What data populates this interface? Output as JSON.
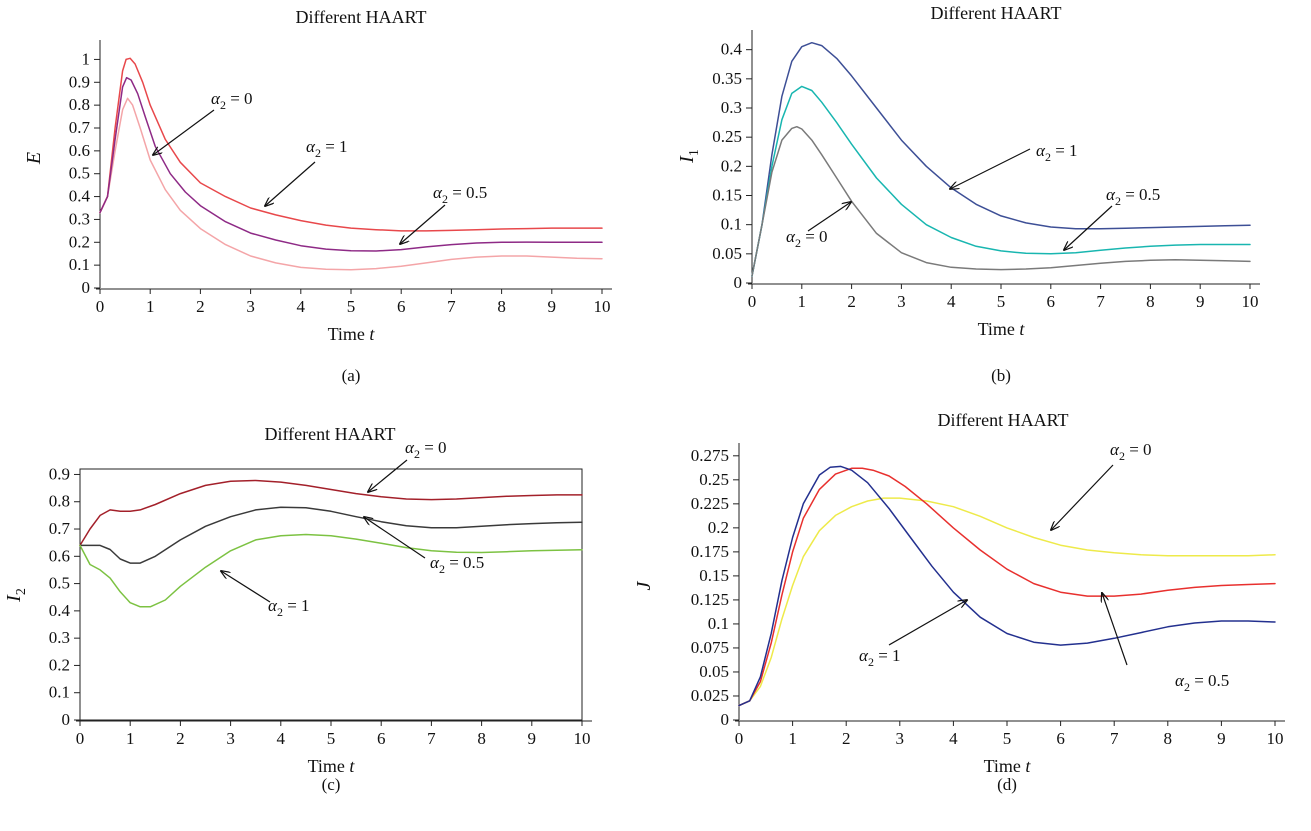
{
  "chart_data": [
    {
      "panel": "(a)",
      "type": "line",
      "title": "Different HAART",
      "xlabel": "Time",
      "xlabel_var": "t",
      "ylabel": "E",
      "xlim": [
        0,
        10
      ],
      "ylim": [
        0,
        1.05
      ],
      "xticks": [
        "0",
        "1",
        "2",
        "3",
        "4",
        "5",
        "6",
        "7",
        "8",
        "9",
        "10"
      ],
      "yticks": [
        "0",
        "0.1",
        "0.2",
        "0.3",
        "0.4",
        "0.5",
        "0.6",
        "0.7",
        "0.8",
        "0.9",
        "1"
      ],
      "framed": false,
      "series": [
        {
          "label": "α2 = 0",
          "color": "#f4a5a8",
          "x": [
            0,
            0.15,
            0.3,
            0.45,
            0.55,
            0.65,
            0.8,
            1,
            1.3,
            1.6,
            2,
            2.5,
            3,
            3.5,
            4,
            4.5,
            5,
            5.5,
            6,
            6.5,
            7,
            7.5,
            8,
            8.5,
            9,
            9.5,
            10
          ],
          "y": [
            0.33,
            0.4,
            0.6,
            0.78,
            0.83,
            0.8,
            0.7,
            0.56,
            0.43,
            0.34,
            0.26,
            0.19,
            0.14,
            0.11,
            0.09,
            0.082,
            0.08,
            0.085,
            0.095,
            0.11,
            0.125,
            0.135,
            0.14,
            0.14,
            0.135,
            0.13,
            0.128
          ]
        },
        {
          "label": "α2 = 1",
          "color": "#e8484b",
          "x": [
            0,
            0.15,
            0.3,
            0.45,
            0.52,
            0.6,
            0.7,
            0.85,
            1,
            1.3,
            1.6,
            2,
            2.5,
            3,
            3.5,
            4,
            4.5,
            5,
            5.5,
            6,
            6.5,
            7,
            7.5,
            8,
            8.5,
            9,
            9.5,
            10
          ],
          "y": [
            0.33,
            0.4,
            0.7,
            0.95,
            1.0,
            1.005,
            0.98,
            0.9,
            0.8,
            0.65,
            0.55,
            0.46,
            0.4,
            0.35,
            0.32,
            0.295,
            0.275,
            0.262,
            0.255,
            0.25,
            0.25,
            0.252,
            0.255,
            0.258,
            0.26,
            0.262,
            0.262,
            0.262
          ]
        },
        {
          "label": "α2 = 0.5",
          "color": "#8e2a86",
          "x": [
            0,
            0.15,
            0.3,
            0.45,
            0.53,
            0.62,
            0.75,
            0.9,
            1.1,
            1.4,
            1.7,
            2,
            2.5,
            3,
            3.5,
            4,
            4.5,
            5,
            5.5,
            6,
            6.5,
            7,
            7.5,
            8,
            8.5,
            9,
            9.5,
            10
          ],
          "y": [
            0.33,
            0.4,
            0.65,
            0.88,
            0.92,
            0.91,
            0.85,
            0.75,
            0.62,
            0.5,
            0.42,
            0.36,
            0.29,
            0.24,
            0.21,
            0.185,
            0.17,
            0.163,
            0.162,
            0.168,
            0.18,
            0.19,
            0.197,
            0.2,
            0.201,
            0.2,
            0.2,
            0.2
          ]
        }
      ],
      "annotations": [
        {
          "text": "α2 = 0",
          "series": 0
        },
        {
          "text": "α2 = 1",
          "series": 1
        },
        {
          "text": "α2 = 0.5",
          "series": 2
        }
      ],
      "caption": "(a)"
    },
    {
      "panel": "(b)",
      "type": "line",
      "title": "Different HAART",
      "xlabel": "Time",
      "xlabel_var": "t",
      "ylabel": "I1",
      "xlim": [
        0,
        10
      ],
      "ylim": [
        0,
        0.42
      ],
      "xticks": [
        "0",
        "1",
        "2",
        "3",
        "4",
        "5",
        "6",
        "7",
        "8",
        "9",
        "10"
      ],
      "yticks": [
        "0",
        "0.05",
        "0.1",
        "0.15",
        "0.2",
        "0.25",
        "0.3",
        "0.35",
        "0.4"
      ],
      "framed": false,
      "series": [
        {
          "label": "α2 = 1",
          "color": "#3d4f96",
          "x": [
            0,
            0.2,
            0.4,
            0.6,
            0.8,
            1,
            1.2,
            1.4,
            1.7,
            2,
            2.5,
            3,
            3.5,
            4,
            4.5,
            5,
            5.5,
            6,
            6.5,
            7,
            7.5,
            8,
            8.5,
            9,
            9.5,
            10
          ],
          "y": [
            0.012,
            0.1,
            0.22,
            0.32,
            0.38,
            0.405,
            0.412,
            0.407,
            0.385,
            0.355,
            0.3,
            0.245,
            0.2,
            0.163,
            0.135,
            0.115,
            0.103,
            0.096,
            0.093,
            0.093,
            0.094,
            0.095,
            0.096,
            0.097,
            0.098,
            0.099
          ]
        },
        {
          "label": "α2 = 0.5",
          "color": "#18b6b0",
          "x": [
            0,
            0.2,
            0.4,
            0.6,
            0.8,
            1,
            1.2,
            1.4,
            1.7,
            2,
            2.5,
            3,
            3.5,
            4,
            4.5,
            5,
            5.5,
            6,
            6.5,
            7,
            7.5,
            8,
            8.5,
            9,
            9.5,
            10
          ],
          "y": [
            0.012,
            0.1,
            0.2,
            0.28,
            0.325,
            0.337,
            0.33,
            0.31,
            0.275,
            0.238,
            0.18,
            0.135,
            0.1,
            0.078,
            0.063,
            0.055,
            0.051,
            0.05,
            0.052,
            0.056,
            0.06,
            0.063,
            0.065,
            0.066,
            0.066,
            0.066
          ]
        },
        {
          "label": "α2 = 0",
          "color": "#7a7a7a",
          "x": [
            0,
            0.2,
            0.4,
            0.6,
            0.8,
            0.9,
            1,
            1.2,
            1.4,
            1.7,
            2,
            2.5,
            3,
            3.5,
            4,
            4.5,
            5,
            5.5,
            6,
            6.5,
            7,
            7.5,
            8,
            8.5,
            9,
            9.5,
            10
          ],
          "y": [
            0.012,
            0.1,
            0.19,
            0.245,
            0.265,
            0.268,
            0.264,
            0.245,
            0.22,
            0.18,
            0.14,
            0.085,
            0.052,
            0.035,
            0.027,
            0.024,
            0.023,
            0.024,
            0.026,
            0.03,
            0.034,
            0.037,
            0.039,
            0.04,
            0.039,
            0.038,
            0.037
          ]
        }
      ],
      "annotations": [
        {
          "text": "α2 = 1",
          "series": 0
        },
        {
          "text": "α2 = 0.5",
          "series": 1
        },
        {
          "text": "α2 = 0",
          "series": 2
        }
      ],
      "caption": "(b)"
    },
    {
      "panel": "(c)",
      "type": "line",
      "title": "Different HAART",
      "xlabel": "Time",
      "xlabel_var": "t",
      "ylabel": "I2",
      "xlim": [
        0,
        10
      ],
      "ylim": [
        0,
        0.92
      ],
      "xticks": [
        "0",
        "1",
        "2",
        "3",
        "4",
        "5",
        "6",
        "7",
        "8",
        "9",
        "10"
      ],
      "yticks": [
        "0",
        "0.1",
        "0.2",
        "0.3",
        "0.4",
        "0.5",
        "0.6",
        "0.7",
        "0.8",
        "0.9"
      ],
      "framed": true,
      "series": [
        {
          "label": "α2 = 0",
          "color": "#a3202a",
          "x": [
            0,
            0.2,
            0.4,
            0.6,
            0.8,
            1,
            1.2,
            1.5,
            2,
            2.5,
            3,
            3.5,
            4,
            4.5,
            5,
            5.5,
            6,
            6.5,
            7,
            7.5,
            8,
            8.5,
            9,
            9.5,
            10
          ],
          "y": [
            0.64,
            0.7,
            0.75,
            0.77,
            0.765,
            0.765,
            0.77,
            0.79,
            0.83,
            0.86,
            0.875,
            0.878,
            0.872,
            0.86,
            0.845,
            0.83,
            0.818,
            0.81,
            0.808,
            0.81,
            0.815,
            0.82,
            0.823,
            0.825,
            0.825
          ]
        },
        {
          "label": "α2 = 0.5",
          "color": "#3a3a3a",
          "x": [
            0,
            0.2,
            0.4,
            0.6,
            0.8,
            1,
            1.2,
            1.5,
            2,
            2.5,
            3,
            3.5,
            4,
            4.5,
            5,
            5.5,
            6,
            6.5,
            7,
            7.5,
            8,
            8.5,
            9,
            9.5,
            10
          ],
          "y": [
            0.64,
            0.64,
            0.64,
            0.625,
            0.59,
            0.575,
            0.575,
            0.6,
            0.66,
            0.71,
            0.745,
            0.77,
            0.78,
            0.778,
            0.765,
            0.745,
            0.727,
            0.712,
            0.705,
            0.705,
            0.71,
            0.716,
            0.72,
            0.723,
            0.725
          ]
        },
        {
          "label": "α2 = 1",
          "color": "#7cc242",
          "x": [
            0,
            0.2,
            0.4,
            0.6,
            0.8,
            1,
            1.2,
            1.4,
            1.7,
            2,
            2.5,
            3,
            3.5,
            4,
            4.5,
            5,
            5.5,
            6,
            6.5,
            7,
            7.5,
            8,
            8.5,
            9,
            9.5,
            10
          ],
          "y": [
            0.64,
            0.57,
            0.55,
            0.52,
            0.47,
            0.43,
            0.415,
            0.415,
            0.44,
            0.49,
            0.56,
            0.62,
            0.66,
            0.675,
            0.68,
            0.675,
            0.663,
            0.648,
            0.632,
            0.62,
            0.615,
            0.614,
            0.617,
            0.62,
            0.622,
            0.624
          ]
        }
      ],
      "annotations": [
        {
          "text": "α2 = 0",
          "series": 0
        },
        {
          "text": "α2 = 0.5",
          "series": 1
        },
        {
          "text": "α2 = 1",
          "series": 2
        }
      ],
      "caption": "(c)"
    },
    {
      "panel": "(d)",
      "type": "line",
      "title": "Different HAART",
      "xlabel": "Time",
      "xlabel_var": "t",
      "ylabel": "J",
      "xlim": [
        0,
        10
      ],
      "ylim": [
        0,
        0.28
      ],
      "xticks": [
        "0",
        "1",
        "2",
        "3",
        "4",
        "5",
        "6",
        "7",
        "8",
        "9",
        "10"
      ],
      "yticks": [
        "0",
        "0.025",
        "0.05",
        "0.075",
        "0.1",
        "0.125",
        "0.15",
        "0.175",
        "0.2",
        "0.225",
        "0.25",
        "0.275"
      ],
      "framed": false,
      "series": [
        {
          "label": "α2 = 0",
          "color": "#eeea4a",
          "x": [
            0,
            0.2,
            0.4,
            0.6,
            0.8,
            1,
            1.2,
            1.5,
            1.8,
            2.1,
            2.4,
            2.7,
            3,
            3.5,
            4,
            4.5,
            5,
            5.5,
            6,
            6.5,
            7,
            7.5,
            8,
            8.5,
            9,
            9.5,
            10
          ],
          "y": [
            0.015,
            0.02,
            0.035,
            0.065,
            0.105,
            0.14,
            0.17,
            0.197,
            0.213,
            0.222,
            0.228,
            0.231,
            0.231,
            0.228,
            0.222,
            0.212,
            0.2,
            0.19,
            0.182,
            0.177,
            0.174,
            0.172,
            0.171,
            0.171,
            0.171,
            0.171,
            0.172
          ]
        },
        {
          "label": "α2 = 0.5",
          "color": "#e8302e",
          "x": [
            0,
            0.2,
            0.4,
            0.6,
            0.8,
            1,
            1.2,
            1.5,
            1.8,
            2.1,
            2.3,
            2.5,
            2.8,
            3.1,
            3.5,
            4,
            4.5,
            5,
            5.5,
            6,
            6.5,
            7,
            7.5,
            8,
            8.5,
            9,
            9.5,
            10
          ],
          "y": [
            0.015,
            0.02,
            0.04,
            0.08,
            0.13,
            0.175,
            0.21,
            0.24,
            0.256,
            0.262,
            0.262,
            0.26,
            0.254,
            0.243,
            0.225,
            0.2,
            0.177,
            0.157,
            0.142,
            0.133,
            0.129,
            0.129,
            0.131,
            0.135,
            0.138,
            0.14,
            0.141,
            0.142
          ]
        },
        {
          "label": "α2 = 1",
          "color": "#23308f",
          "x": [
            0,
            0.2,
            0.4,
            0.6,
            0.8,
            1,
            1.2,
            1.5,
            1.7,
            1.9,
            2.1,
            2.4,
            2.8,
            3.2,
            3.6,
            4,
            4.5,
            5,
            5.5,
            6,
            6.5,
            7,
            7.5,
            8,
            8.5,
            9,
            9.5,
            10
          ],
          "y": [
            0.015,
            0.02,
            0.045,
            0.09,
            0.145,
            0.19,
            0.225,
            0.255,
            0.263,
            0.264,
            0.26,
            0.247,
            0.22,
            0.19,
            0.16,
            0.133,
            0.107,
            0.09,
            0.081,
            0.078,
            0.08,
            0.085,
            0.091,
            0.097,
            0.101,
            0.103,
            0.103,
            0.102
          ]
        }
      ],
      "annotations": [
        {
          "text": "α2 = 0",
          "series": 0
        },
        {
          "text": "α2 = 0.5",
          "series": 1
        },
        {
          "text": "α2 = 1",
          "series": 2
        }
      ],
      "caption": "(d)"
    }
  ]
}
